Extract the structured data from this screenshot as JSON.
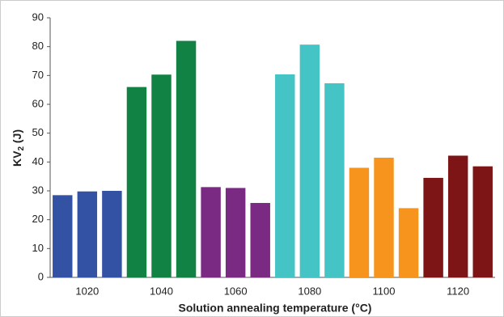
{
  "chart_data": {
    "type": "bar",
    "x_label": "Solution annealing temperature (°C)",
    "y_label": [
      "KV",
      "2",
      " (J)"
    ],
    "categories": [
      null,
      "1020",
      null,
      null,
      "1040",
      null,
      null,
      "1060",
      null,
      null,
      "1080",
      null,
      null,
      "1100",
      null,
      null,
      "1120",
      null
    ],
    "values": [
      28.5,
      29.8,
      30,
      66,
      70.3,
      82,
      31.3,
      31,
      25.8,
      70.4,
      80.7,
      67.3,
      38,
      41.5,
      24,
      34.5,
      42.2,
      38.5
    ],
    "colors": [
      "#3452a4",
      "#3452a4",
      "#3452a4",
      "#118243",
      "#118243",
      "#118243",
      "#7b2a84",
      "#7b2a84",
      "#7b2a84",
      "#44c4c4",
      "#44c4c4",
      "#44c4c4",
      "#f7941d",
      "#f7941d",
      "#f7941d",
      "#7d1416",
      "#7d1416",
      "#7d1416"
    ],
    "ylim": [
      0,
      90
    ],
    "yticks": [
      0,
      10,
      20,
      30,
      40,
      50,
      60,
      70,
      80,
      90
    ],
    "grid": false
  }
}
